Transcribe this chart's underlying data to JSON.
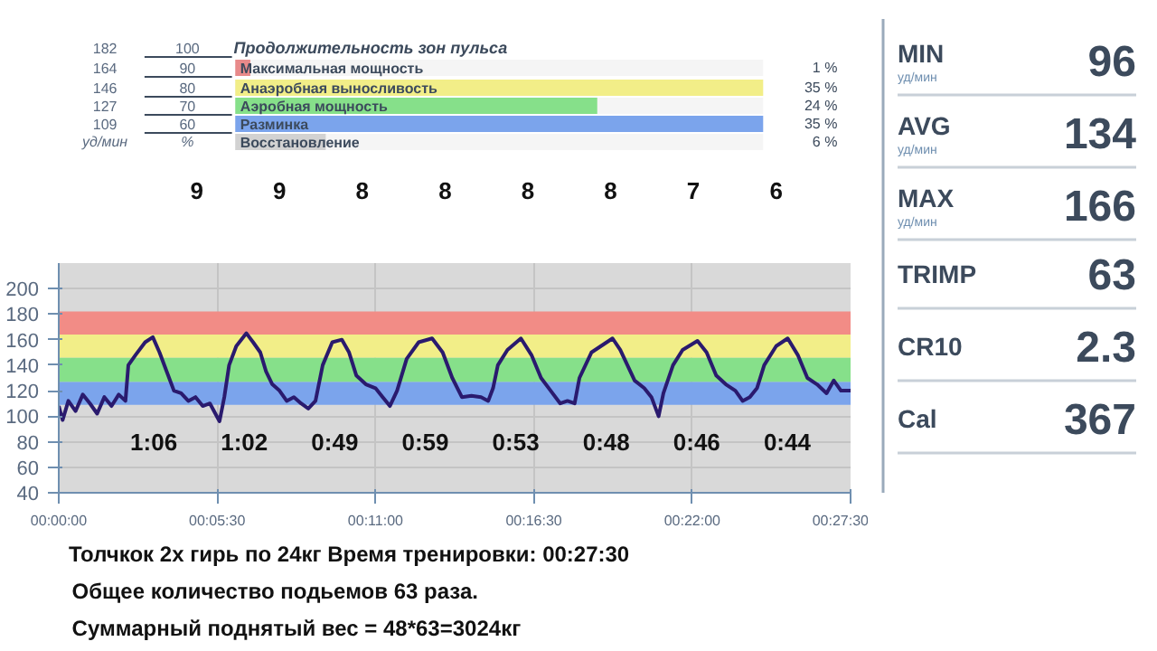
{
  "chart_data": [
    {
      "type": "bar",
      "orientation": "horizontal",
      "title": "Продолжительность зон пульса",
      "categories": [
        "Максимальная мощность",
        "Анаэробная выносливость",
        "Аэробная мощность",
        "Разминка",
        "Восстановление"
      ],
      "values": [
        1,
        35,
        24,
        35,
        6
      ],
      "colors": [
        "#e88a8a",
        "#f2ee88",
        "#86e08a",
        "#7ba4ec",
        "#d2d2d2"
      ],
      "value_labels": [
        "1 %",
        "35 %",
        "24 %",
        "35 %",
        "6 %"
      ],
      "annotations": [
        "182",
        "164",
        "146",
        "127",
        "109",
        "уд/мин",
        "100",
        "90",
        "80",
        "70",
        "60",
        "%"
      ]
    },
    {
      "type": "line",
      "x": [
        0,
        8,
        20,
        35,
        50,
        65,
        80,
        95,
        110,
        125,
        139,
        145,
        160,
        180,
        196,
        210,
        225,
        240,
        255,
        270,
        285,
        300,
        315,
        335,
        345,
        355,
        370,
        391,
        405,
        420,
        432,
        445,
        460,
        475,
        490,
        505,
        520,
        535,
        550,
        570,
        590,
        605,
        620,
        640,
        660,
        675,
        690,
        705,
        725,
        750,
        778,
        800,
        820,
        840,
        860,
        880,
        895,
        905,
        915,
        935,
        963,
        985,
        1005,
        1025,
        1045,
        1060,
        1075,
        1085,
        1110,
        1154,
        1170,
        1185,
        1200,
        1220,
        1235,
        1250,
        1260,
        1280,
        1300,
        1331,
        1350,
        1370,
        1390,
        1410,
        1425,
        1440,
        1455,
        1470,
        1495,
        1519,
        1540,
        1560,
        1580,
        1600,
        1615,
        1630,
        1650
      ],
      "series": [
        {
          "color": "#2a1a6e",
          "values": [
            108,
            97,
            112,
            104,
            117,
            110,
            102,
            115,
            108,
            117,
            112,
            140,
            148,
            158,
            162,
            150,
            135,
            120,
            118,
            112,
            115,
            108,
            110,
            96,
            115,
            140,
            155,
            165,
            158,
            150,
            135,
            125,
            120,
            112,
            115,
            110,
            106,
            112,
            140,
            158,
            160,
            150,
            132,
            125,
            122,
            115,
            108,
            120,
            145,
            158,
            161,
            150,
            130,
            115,
            116,
            115,
            112,
            122,
            140,
            152,
            161,
            148,
            130,
            120,
            110,
            112,
            110,
            130,
            150,
            161,
            152,
            140,
            128,
            122,
            115,
            100,
            118,
            140,
            152,
            159,
            150,
            132,
            125,
            120,
            112,
            115,
            122,
            140,
            155,
            161,
            148,
            130,
            125,
            118,
            128,
            120,
            120
          ]
        }
      ],
      "xlim": [
        0,
        1650
      ],
      "xticks": [
        {
          "value": 0,
          "label": "00:00:00"
        },
        {
          "value": 330,
          "label": "00:05:30"
        },
        {
          "value": 660,
          "label": "00:11:00"
        },
        {
          "value": 990,
          "label": "00:16:30"
        },
        {
          "value": 1320,
          "label": "00:22:00"
        },
        {
          "value": 1650,
          "label": "00:27:30"
        }
      ],
      "ylim": [
        40,
        220
      ],
      "yticks": [
        40,
        60,
        80,
        100,
        120,
        140,
        160,
        180,
        200
      ],
      "grid": true,
      "bands": [
        {
          "axis": "y",
          "from": 109,
          "to": 127,
          "color": "#7ba4ec"
        },
        {
          "axis": "y",
          "from": 127,
          "to": 146,
          "color": "#86e08a"
        },
        {
          "axis": "y",
          "from": 146,
          "to": 164,
          "color": "#f2ee88"
        },
        {
          "axis": "y",
          "from": 164,
          "to": 182,
          "color": "#f28c86"
        }
      ],
      "annotations": [
        "9",
        "9",
        "8",
        "8",
        "8",
        "8",
        "7",
        "6",
        "1:06",
        "1:02",
        "0:49",
        "0:59",
        "0:53",
        "0:48",
        "0:46",
        "0:44",
        "Толчкок 2х гирь по 24кг    Время тренировки: 00:27:30",
        "Общее количество подьемов 63 раза.",
        "Суммарный поднятый вес = 48*63=3024кг"
      ]
    },
    {
      "type": "other",
      "categories": [
        "MIN",
        "AVG",
        "MAX",
        "TRIMP",
        "CR10",
        "Cal"
      ],
      "values": [
        96,
        134,
        166,
        63,
        2.3,
        367
      ],
      "data_labels": true,
      "annotations": [
        "уд/мин",
        "уд/мин",
        "уд/мин"
      ]
    }
  ]
}
